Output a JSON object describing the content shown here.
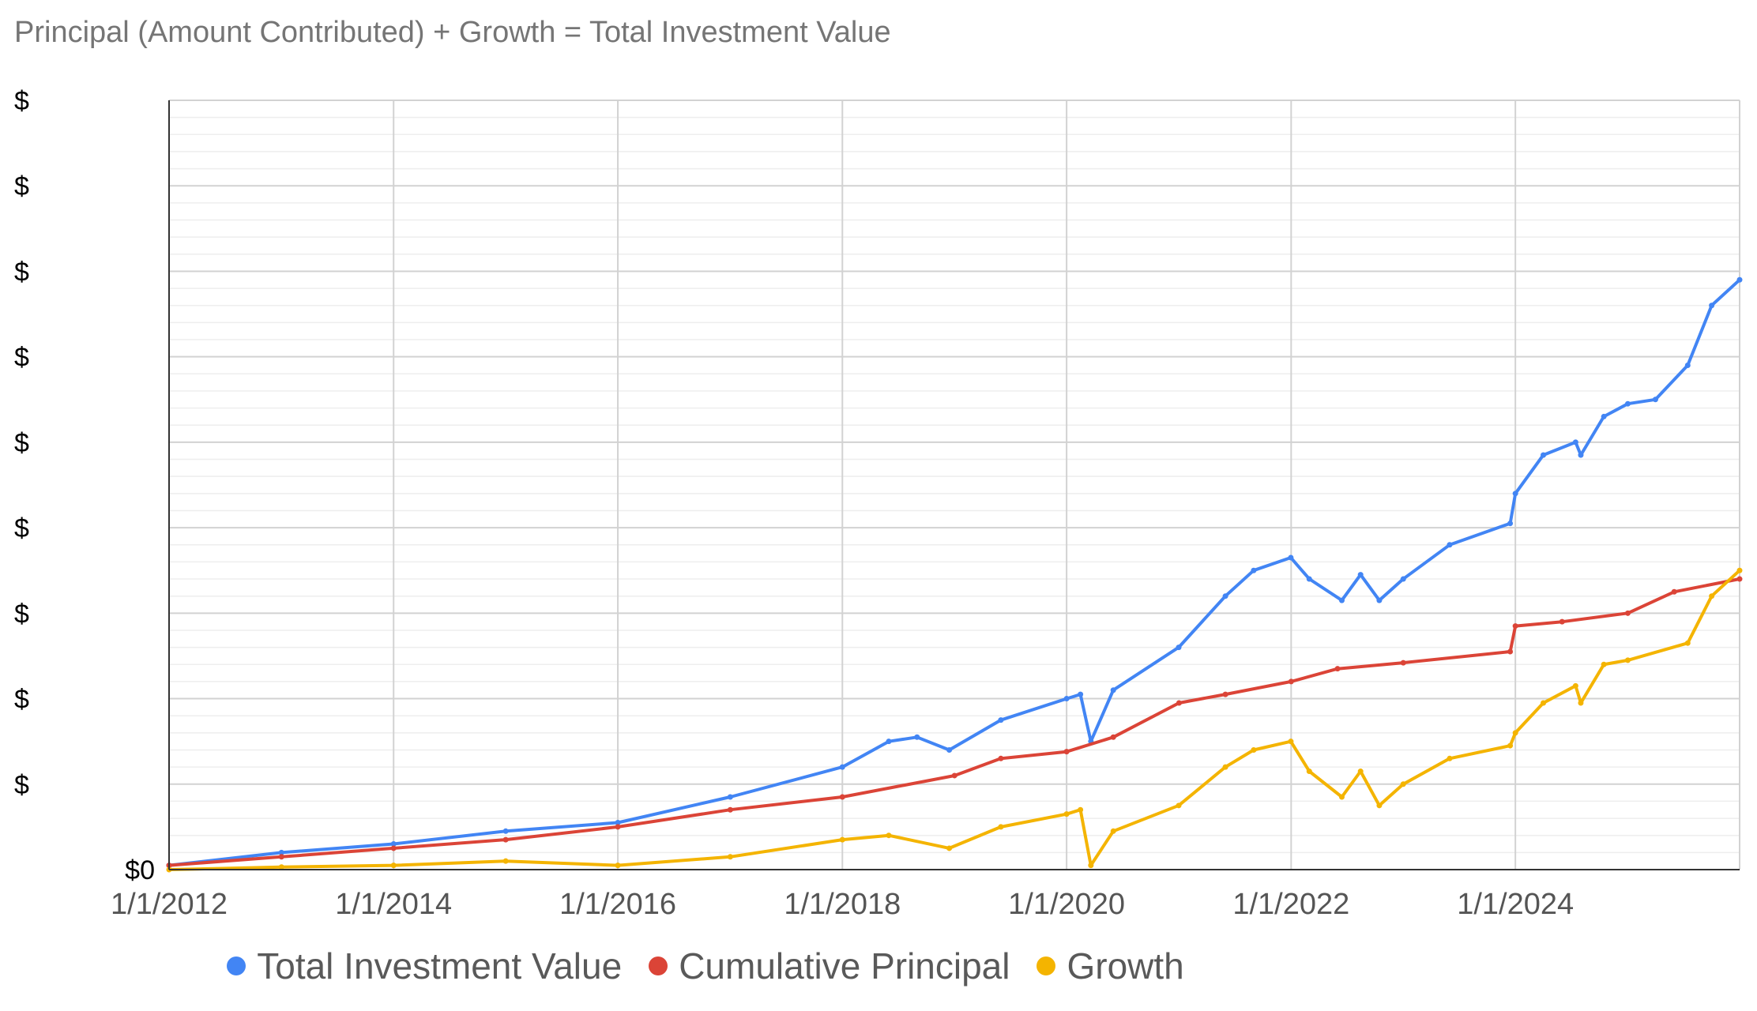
{
  "chart_data": {
    "type": "line",
    "title": "Principal (Amount Contributed) + Growth = Total Investment Value",
    "xlabel": "",
    "ylabel": "",
    "x_axis": {
      "type": "date",
      "range": [
        "2012-01-01",
        "2025-12-31"
      ],
      "tick_values": [
        "2012-01-01",
        "2014-01-01",
        "2016-01-01",
        "2018-01-01",
        "2020-01-01",
        "2022-01-01",
        "2024-01-01"
      ],
      "tick_labels": [
        "1/1/2012",
        "1/1/2014",
        "1/1/2016",
        "1/1/2018",
        "1/1/2020",
        "1/1/2022",
        "1/1/2024"
      ]
    },
    "y_axis": {
      "ylim": [
        0,
        9
      ],
      "unit": "relative (tick values obscured)",
      "tick_values": [
        0,
        1,
        2,
        3,
        4,
        5,
        6,
        7,
        8,
        9
      ],
      "tick_labels": [
        "$0",
        "$",
        "$",
        "$",
        "$",
        "$",
        "$",
        "$",
        "$",
        "$"
      ],
      "minor_divisions": 4
    },
    "grid": true,
    "legend": "bottom",
    "series": [
      {
        "name": "Total Investment Value",
        "color": "#4285F4",
        "points": [
          [
            "2012-01-01",
            0.05
          ],
          [
            "2013-01-01",
            0.2
          ],
          [
            "2014-01-01",
            0.3
          ],
          [
            "2015-01-01",
            0.45
          ],
          [
            "2016-01-01",
            0.55
          ],
          [
            "2017-01-01",
            0.85
          ],
          [
            "2018-01-01",
            1.2
          ],
          [
            "2018-06-01",
            1.5
          ],
          [
            "2018-09-01",
            1.55
          ],
          [
            "2018-12-15",
            1.4
          ],
          [
            "2019-06-01",
            1.75
          ],
          [
            "2020-01-01",
            2.0
          ],
          [
            "2020-02-15",
            2.05
          ],
          [
            "2020-03-20",
            1.5
          ],
          [
            "2020-06-01",
            2.1
          ],
          [
            "2020-12-31",
            2.6
          ],
          [
            "2021-06-01",
            3.2
          ],
          [
            "2021-09-01",
            3.5
          ],
          [
            "2021-12-31",
            3.65
          ],
          [
            "2022-03-01",
            3.4
          ],
          [
            "2022-06-15",
            3.15
          ],
          [
            "2022-08-15",
            3.45
          ],
          [
            "2022-10-15",
            3.15
          ],
          [
            "2023-01-01",
            3.4
          ],
          [
            "2023-06-01",
            3.8
          ],
          [
            "2023-12-15",
            4.05
          ],
          [
            "2024-01-01",
            4.4
          ],
          [
            "2024-04-01",
            4.85
          ],
          [
            "2024-07-15",
            5.0
          ],
          [
            "2024-08-01",
            4.85
          ],
          [
            "2024-10-15",
            5.3
          ],
          [
            "2025-01-01",
            5.45
          ],
          [
            "2025-04-01",
            5.5
          ],
          [
            "2025-07-15",
            5.9
          ],
          [
            "2025-10-01",
            6.6
          ],
          [
            "2025-12-31",
            6.9
          ]
        ]
      },
      {
        "name": "Cumulative Principal",
        "color": "#DB4437",
        "points": [
          [
            "2012-01-01",
            0.05
          ],
          [
            "2013-01-01",
            0.15
          ],
          [
            "2014-01-01",
            0.25
          ],
          [
            "2015-01-01",
            0.35
          ],
          [
            "2016-01-01",
            0.5
          ],
          [
            "2017-01-01",
            0.7
          ],
          [
            "2018-01-01",
            0.85
          ],
          [
            "2019-01-01",
            1.1
          ],
          [
            "2019-06-01",
            1.3
          ],
          [
            "2020-01-01",
            1.38
          ],
          [
            "2020-06-01",
            1.55
          ],
          [
            "2021-01-01",
            1.95
          ],
          [
            "2021-06-01",
            2.05
          ],
          [
            "2022-01-01",
            2.2
          ],
          [
            "2022-06-01",
            2.35
          ],
          [
            "2023-01-01",
            2.42
          ],
          [
            "2023-12-15",
            2.55
          ],
          [
            "2024-01-01",
            2.85
          ],
          [
            "2024-06-01",
            2.9
          ],
          [
            "2025-01-01",
            3.0
          ],
          [
            "2025-06-01",
            3.25
          ],
          [
            "2025-12-31",
            3.4
          ]
        ]
      },
      {
        "name": "Growth",
        "color": "#F4B400",
        "points": [
          [
            "2012-01-01",
            0.0
          ],
          [
            "2013-01-01",
            0.03
          ],
          [
            "2014-01-01",
            0.05
          ],
          [
            "2015-01-01",
            0.1
          ],
          [
            "2016-01-01",
            0.05
          ],
          [
            "2017-01-01",
            0.15
          ],
          [
            "2018-01-01",
            0.35
          ],
          [
            "2018-06-01",
            0.4
          ],
          [
            "2018-12-15",
            0.25
          ],
          [
            "2019-06-01",
            0.5
          ],
          [
            "2020-01-01",
            0.65
          ],
          [
            "2020-02-15",
            0.7
          ],
          [
            "2020-03-20",
            0.05
          ],
          [
            "2020-06-01",
            0.45
          ],
          [
            "2020-12-31",
            0.75
          ],
          [
            "2021-06-01",
            1.2
          ],
          [
            "2021-09-01",
            1.4
          ],
          [
            "2021-12-31",
            1.5
          ],
          [
            "2022-03-01",
            1.15
          ],
          [
            "2022-06-15",
            0.85
          ],
          [
            "2022-08-15",
            1.15
          ],
          [
            "2022-10-15",
            0.75
          ],
          [
            "2023-01-01",
            1.0
          ],
          [
            "2023-06-01",
            1.3
          ],
          [
            "2023-12-15",
            1.45
          ],
          [
            "2024-01-01",
            1.6
          ],
          [
            "2024-04-01",
            1.95
          ],
          [
            "2024-07-15",
            2.15
          ],
          [
            "2024-08-01",
            1.95
          ],
          [
            "2024-10-15",
            2.4
          ],
          [
            "2025-01-01",
            2.45
          ],
          [
            "2025-07-15",
            2.65
          ],
          [
            "2025-10-01",
            3.2
          ],
          [
            "2025-12-31",
            3.5
          ]
        ]
      }
    ]
  }
}
